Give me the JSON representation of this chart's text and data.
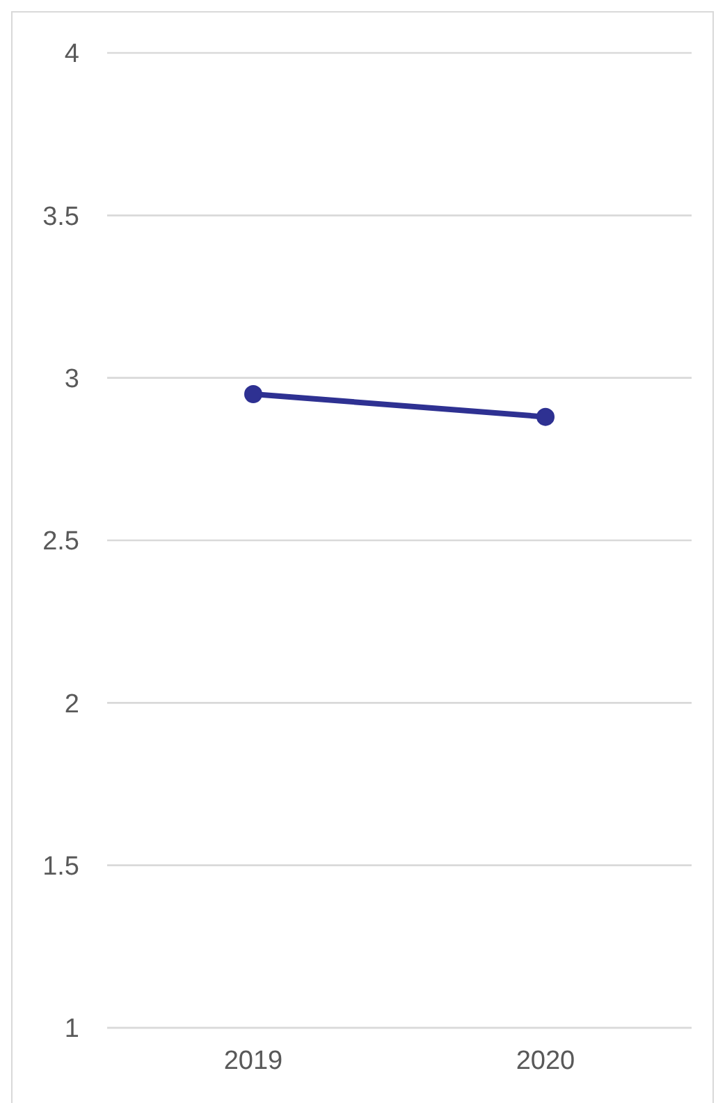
{
  "chart_data": {
    "type": "line",
    "categories": [
      "2019",
      "2020"
    ],
    "series": [
      {
        "color": "#2e3192",
        "values": [
          2.95,
          2.88
        ]
      }
    ],
    "ylim": [
      1,
      4
    ],
    "yticks": [
      1,
      1.5,
      2,
      2.5,
      3,
      3.5,
      4
    ],
    "grid": "y",
    "marker": "circle",
    "line_style": "solid"
  }
}
